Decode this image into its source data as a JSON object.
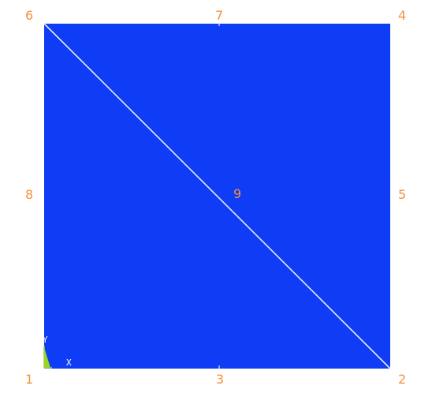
{
  "colors": {
    "background": "#ffffff",
    "element_fill": "#0f3cf5",
    "mesh_line": "#e6ecff",
    "node_label": "#f7913a",
    "axis_label": "#ffffff",
    "triad": "#9bd32a"
  },
  "nodes": [
    {
      "id": "1",
      "label": "1"
    },
    {
      "id": "2",
      "label": "2"
    },
    {
      "id": "3",
      "label": "3"
    },
    {
      "id": "4",
      "label": "4"
    },
    {
      "id": "5",
      "label": "5"
    },
    {
      "id": "6",
      "label": "6"
    },
    {
      "id": "7",
      "label": "7"
    },
    {
      "id": "8",
      "label": "8"
    },
    {
      "id": "9",
      "label": "9"
    }
  ],
  "triad": {
    "x_label": "X",
    "y_label": "Y"
  }
}
